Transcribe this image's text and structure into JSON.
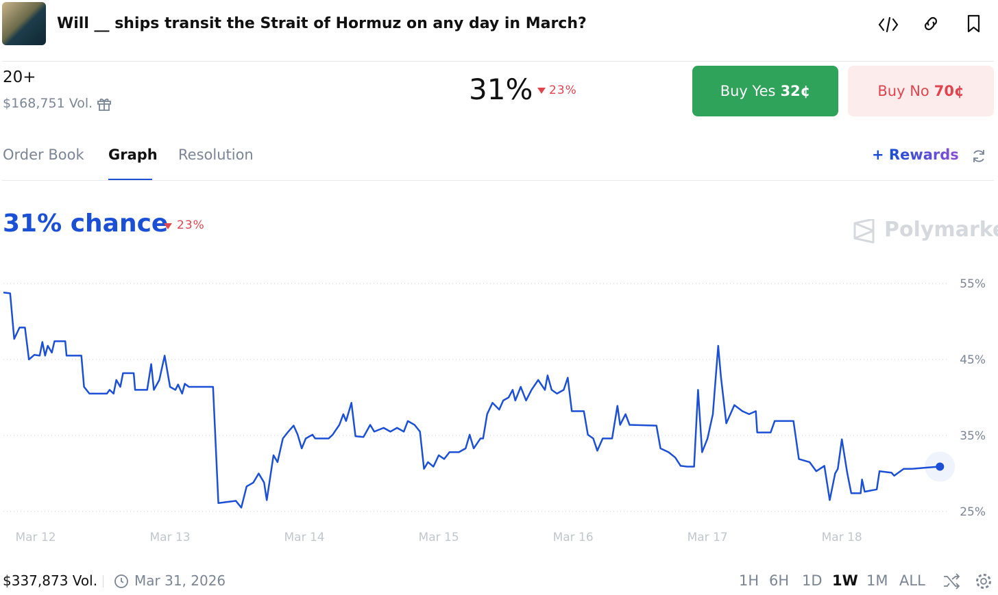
{
  "header": {
    "title": "Will __ ships transit the Strait of Hormuz on any day in March?"
  },
  "market": {
    "outcome": "20+",
    "volume": "$168,751 Vol.",
    "probability": "31%",
    "change": "23%",
    "buy_yes": "Buy Yes",
    "yes_price": "32¢",
    "buy_no": "Buy No",
    "no_price": "70¢"
  },
  "tabs": [
    "Order Book",
    "Graph",
    "Resolution"
  ],
  "rewards": "Rewards",
  "chart_header": {
    "chance": "31% chance",
    "change": "23%",
    "brand": "Polymarket"
  },
  "chart_data": {
    "type": "line",
    "color": "#1a4fd6",
    "x": [
      -0.24,
      -0.19,
      -0.16,
      -0.12,
      -0.08,
      -0.05,
      -0.01,
      0.03,
      0.05,
      0.07,
      0.09,
      0.12,
      0.14,
      0.22,
      0.23,
      0.34,
      0.36,
      0.4,
      0.53,
      0.55,
      0.58,
      0.6,
      0.63,
      0.65,
      0.73,
      0.74,
      0.83,
      0.86,
      0.88,
      0.92,
      0.96,
      1,
      1.04,
      1.06,
      1.09,
      1.11,
      1.14,
      1.19,
      1.32,
      1.36,
      1.49,
      1.53,
      1.57,
      1.62,
      1.66,
      1.7,
      1.72,
      1.77,
      1.8,
      1.84,
      1.88,
      1.92,
      1.95,
      1.98,
      2.01,
      2.06,
      2.08,
      2.18,
      2.21,
      2.26,
      2.29,
      2.31,
      2.35,
      2.38,
      2.44,
      2.49,
      2.52,
      2.59,
      2.64,
      2.69,
      2.74,
      2.77,
      2.82,
      2.86,
      2.89,
      2.92,
      2.96,
      3,
      3.04,
      3.08,
      3.15,
      3.2,
      3.23,
      3.26,
      3.31,
      3.33,
      3.36,
      3.4,
      3.45,
      3.48,
      3.52,
      3.55,
      3.57,
      3.61,
      3.65,
      3.69,
      3.74,
      3.79,
      3.81,
      3.84,
      3.88,
      3.93,
      3.96,
      3.99,
      4.08,
      4.11,
      4.15,
      4.18,
      4.22,
      4.29,
      4.33,
      4.35,
      4.39,
      4.42,
      4.62,
      4.65,
      4.71,
      4.76,
      4.8,
      4.85,
      4.9,
      4.93,
      4.96,
      5,
      5.04,
      5.08,
      5.1,
      5.14,
      5.2,
      5.26,
      5.31,
      5.36,
      5.37,
      5.47,
      5.5,
      5.64,
      5.68,
      5.76,
      5.81,
      5.87,
      5.91,
      5.95,
      5.97,
      6,
      6.04,
      6.07,
      6.14,
      6.15,
      6.17,
      6.26,
      6.28,
      6.37,
      6.39,
      6.46,
      6.52,
      6.65,
      6.73
    ],
    "values": [
      53.8,
      53.7,
      47.7,
      49.2,
      49.2,
      45,
      45.6,
      45.5,
      47.3,
      45.5,
      46.8,
      45.9,
      47.4,
      47.4,
      45.5,
      45.5,
      41.4,
      40.5,
      40.5,
      41,
      40.5,
      42.3,
      41.4,
      43.2,
      43.2,
      41,
      41,
      44.4,
      41,
      42.3,
      45.5,
      41.4,
      41,
      41.7,
      40.5,
      41.8,
      41.4,
      41.4,
      41.4,
      26.1,
      26.4,
      25.5,
      28.3,
      28.8,
      30,
      28.8,
      26.5,
      32.4,
      31.5,
      34.6,
      35.5,
      36.3,
      35.1,
      33.3,
      34.6,
      35.1,
      34.6,
      34.6,
      35.1,
      36.4,
      37.8,
      36.9,
      39.3,
      34.9,
      34.8,
      36.4,
      35.5,
      36,
      35.5,
      36,
      35.5,
      36.9,
      36.4,
      35.5,
      30.6,
      31.5,
      30.9,
      32.4,
      31.9,
      32.8,
      32.8,
      33.3,
      35.1,
      33.3,
      34.6,
      34.6,
      37.8,
      39.3,
      38.4,
      39.6,
      40,
      41,
      39.6,
      41.4,
      39.6,
      41,
      42.3,
      41,
      42.9,
      41,
      40.5,
      41,
      42.6,
      38.2,
      38.2,
      35.1,
      34.6,
      33,
      34.6,
      34.6,
      38.9,
      36.4,
      37.8,
      36.4,
      36.3,
      33.3,
      32.8,
      32.1,
      31,
      30.9,
      30.9,
      41,
      32.8,
      34.6,
      37.8,
      46.8,
      42.7,
      36.6,
      39,
      38.2,
      37.8,
      38.2,
      35.4,
      35.4,
      36.9,
      36.9,
      31.9,
      31.5,
      30.3,
      31,
      26.5,
      30,
      30.6,
      34.5,
      30.1,
      27.4,
      27.4,
      29.2,
      27.6,
      27.9,
      30.3,
      30.1,
      29.7,
      30.6,
      30.6,
      30.8,
      30.9
    ],
    "xlim": [
      -0.24,
      6.8
    ],
    "xticks": [
      {
        "value": 0,
        "label": "Mar 12"
      },
      {
        "value": 1,
        "label": "Mar 13"
      },
      {
        "value": 2,
        "label": "Mar 14"
      },
      {
        "value": 3,
        "label": "Mar 15"
      },
      {
        "value": 4,
        "label": "Mar 16"
      },
      {
        "value": 5,
        "label": "Mar 17"
      },
      {
        "value": 6,
        "label": "Mar 18"
      }
    ],
    "ylim": [
      25,
      55
    ],
    "yticks": [
      {
        "value": 25,
        "label": "25%"
      },
      {
        "value": 35,
        "label": "35%"
      },
      {
        "value": 45,
        "label": "45%"
      },
      {
        "value": 55,
        "label": "55%"
      }
    ],
    "grid": true
  },
  "footer": {
    "volume": "$337,873 Vol.",
    "end_date": "Mar 31, 2026",
    "ranges": [
      "1H",
      "6H",
      "1D",
      "1W",
      "1M",
      "ALL"
    ]
  }
}
